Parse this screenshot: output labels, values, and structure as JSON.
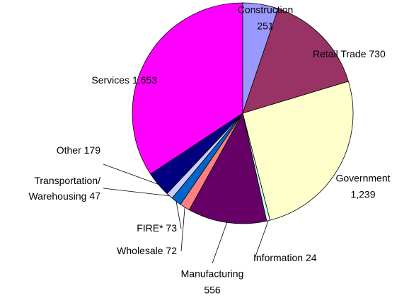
{
  "chart_data": {
    "type": "pie",
    "categories": [
      "Construction",
      "Retail Trade",
      "Government",
      "Information",
      "Manufacturing",
      "Wholesale",
      "FIRE*",
      "Transportation/Warehousing",
      "Other",
      "Services"
    ],
    "values": [
      251,
      730,
      1239,
      24,
      556,
      72,
      73,
      47,
      179,
      1653
    ],
    "value_labels": [
      "251",
      "730",
      "1,239",
      "24",
      "556",
      "72",
      "73",
      "47",
      "179",
      "1,653"
    ],
    "colors": [
      "#9999ff",
      "#993366",
      "#ffffcc",
      "#ccffff",
      "#660066",
      "#ff8080",
      "#0066cc",
      "#ccccff",
      "#000080",
      "#ff00ff"
    ]
  }
}
